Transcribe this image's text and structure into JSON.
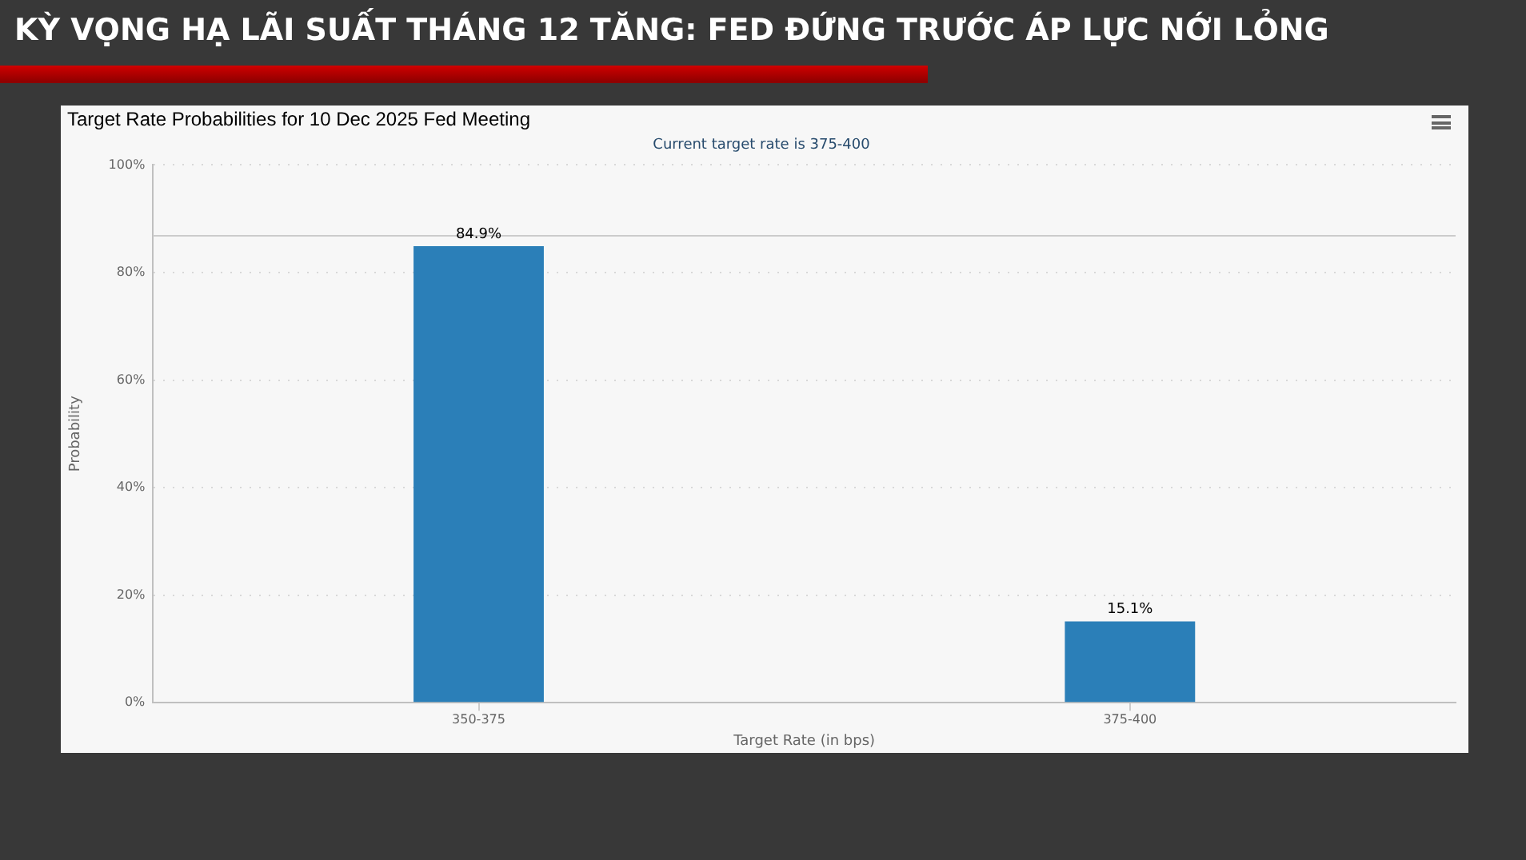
{
  "chart_data": {
    "type": "bar",
    "title": "KỲ VỌNG HẠ LÃI SUẤT THÁNG 12 TĂNG: FED ĐỨNG TRƯỚC ÁP LỰC NỚI LỎNG",
    "subtitle": "Target Rate Probabilities for 10 Dec 2025 Fed Meeting",
    "annotations": [
      "Current target rate is 375-400"
    ],
    "categories": [
      "350-375",
      "375-400"
    ],
    "values": [
      84.9,
      15.1
    ],
    "color": "#2b7fb8",
    "value_labels": [
      "84.9%",
      "15.1%"
    ],
    "xlabel": "Target Rate (in bps)",
    "ylabel": "Probability",
    "ylim": [
      0,
      100
    ],
    "yticks": [
      {
        "value": 0,
        "label": "0%"
      },
      {
        "value": 20,
        "label": "20%"
      },
      {
        "value": 40,
        "label": "40%"
      },
      {
        "value": 60,
        "label": "60%"
      },
      {
        "value": 80,
        "label": "80%"
      },
      {
        "value": 100,
        "label": "100%"
      }
    ],
    "grid": "y",
    "ref_lines": [
      {
        "axis": "y",
        "value": 87,
        "color": "#cccccc"
      }
    ]
  }
}
